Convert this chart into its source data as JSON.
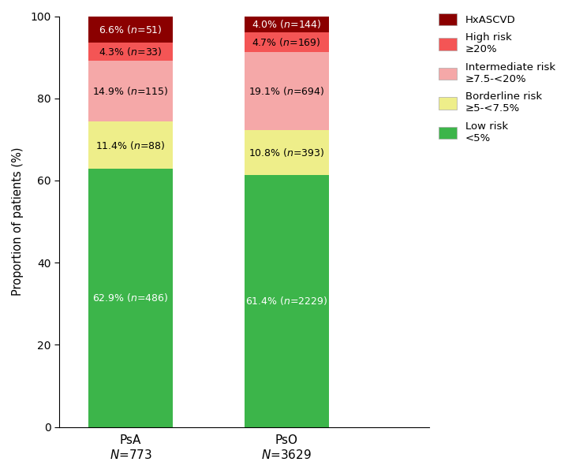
{
  "group_keys": [
    "PsA",
    "PsO"
  ],
  "group_xlabels_line1": [
    "PsA",
    "PsO"
  ],
  "group_xlabels_line2": [
    "N=773",
    "N=3629"
  ],
  "values": {
    "PsA": [
      62.9,
      11.4,
      14.9,
      4.3,
      6.6
    ],
    "PsO": [
      61.4,
      10.8,
      19.1,
      4.7,
      4.0
    ]
  },
  "counts": {
    "PsA": [
      486,
      88,
      115,
      33,
      51
    ],
    "PsO": [
      2229,
      393,
      694,
      169,
      144
    ]
  },
  "colors": [
    "#3cb54a",
    "#eeee8a",
    "#f5a8a8",
    "#f45555",
    "#8b0000"
  ],
  "text_colors": [
    "white",
    "black",
    "black",
    "black",
    "white"
  ],
  "ylabel": "Proportion of patients (%)",
  "yticks": [
    0,
    20,
    40,
    60,
    80,
    100
  ],
  "bar_width": 0.65,
  "bar_positions": [
    0.5,
    1.7
  ],
  "xlim": [
    -0.05,
    2.8
  ],
  "figsize": [
    7.2,
    6.0
  ],
  "dpi": 100,
  "legend_labels": [
    "HxASCVD",
    "High risk\n≥20%",
    "Intermediate risk\n≥7.5-<20%",
    "Borderline risk\n≥5-<7.5%",
    "Low risk\n<5%"
  ],
  "legend_colors": [
    "#8b0000",
    "#f45555",
    "#f5a8a8",
    "#eeee8a",
    "#3cb54a"
  ]
}
